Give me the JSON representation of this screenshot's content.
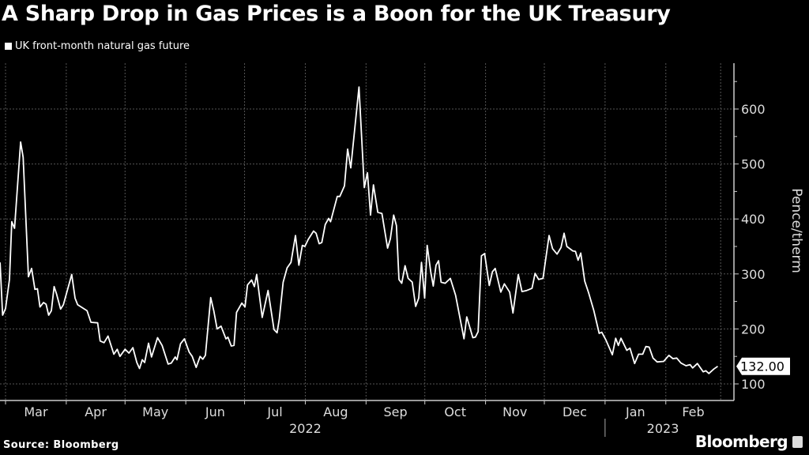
{
  "title": "A Sharp Drop in Gas Prices is a Boon for the UK Treasury",
  "legend": "UK front-month natural gas future",
  "source": "Source: Bloomberg",
  "brand": "Bloomberg",
  "colors": {
    "background": "#000000",
    "line": "#ffffff",
    "grid": "#555555"
  },
  "chart_data": {
    "type": "line",
    "title": "A Sharp Drop in Gas Prices is a Boon for the UK Treasury",
    "xlabel": "",
    "ylabel": "Pence/therm",
    "x_unit": "days since 2022-03-01",
    "ylim": [
      70,
      680
    ],
    "yticks": [
      100,
      200,
      300,
      400,
      500,
      600
    ],
    "grid": true,
    "legend_position": "top-left",
    "month_labels": [
      {
        "label": "Mar",
        "start": 0,
        "end": 31
      },
      {
        "label": "Apr",
        "start": 31,
        "end": 61
      },
      {
        "label": "May",
        "start": 61,
        "end": 92
      },
      {
        "label": "Jun",
        "start": 92,
        "end": 122
      },
      {
        "label": "Jul",
        "start": 122,
        "end": 153
      },
      {
        "label": "Aug",
        "start": 153,
        "end": 184
      },
      {
        "label": "Sep",
        "start": 184,
        "end": 214
      },
      {
        "label": "Oct",
        "start": 214,
        "end": 245
      },
      {
        "label": "Nov",
        "start": 245,
        "end": 275
      },
      {
        "label": "Dec",
        "start": 275,
        "end": 306
      },
      {
        "label": "Jan",
        "start": 306,
        "end": 337
      },
      {
        "label": "Feb",
        "start": 337,
        "end": 365
      }
    ],
    "year_labels": [
      {
        "label": "2022",
        "start": 0,
        "end": 306
      },
      {
        "label": "2023",
        "start": 306,
        "end": 365
      }
    ],
    "last_value_label": "132.00",
    "last_value": 132,
    "series": [
      {
        "name": "UK front-month natural gas future",
        "points": [
          [
            -2.8,
            321
          ],
          [
            -1.5,
            225
          ],
          [
            0,
            237
          ],
          [
            2,
            290
          ],
          [
            3.2,
            395
          ],
          [
            4.6,
            383
          ],
          [
            7.7,
            540
          ],
          [
            9,
            512
          ],
          [
            11.7,
            295
          ],
          [
            13.3,
            310
          ],
          [
            15,
            272
          ],
          [
            16.3,
            273
          ],
          [
            17.6,
            240
          ],
          [
            19.4,
            248
          ],
          [
            20.7,
            245
          ],
          [
            22,
            225
          ],
          [
            23.4,
            233
          ],
          [
            24.8,
            277
          ],
          [
            26,
            264
          ],
          [
            28.1,
            236
          ],
          [
            29.5,
            244
          ],
          [
            33.8,
            299
          ],
          [
            35.5,
            256
          ],
          [
            36.8,
            244
          ],
          [
            41.6,
            233
          ],
          [
            43.6,
            212
          ],
          [
            47,
            211
          ],
          [
            48.3,
            178
          ],
          [
            50.3,
            175
          ],
          [
            52.3,
            187
          ],
          [
            55.3,
            154
          ],
          [
            57,
            163
          ],
          [
            58.4,
            150
          ],
          [
            61,
            163
          ],
          [
            63,
            156
          ],
          [
            65,
            166
          ],
          [
            67,
            139
          ],
          [
            68.4,
            128
          ],
          [
            69.8,
            144
          ],
          [
            71,
            139
          ],
          [
            73,
            174
          ],
          [
            74.5,
            149
          ],
          [
            77.6,
            184
          ],
          [
            79.9,
            170
          ],
          [
            83,
            136
          ],
          [
            84.6,
            138
          ],
          [
            86.6,
            149
          ],
          [
            87.5,
            144
          ],
          [
            89.3,
            173
          ],
          [
            91.3,
            182
          ],
          [
            93.7,
            158
          ],
          [
            95.3,
            150
          ],
          [
            97.3,
            130
          ],
          [
            99.3,
            150
          ],
          [
            100.7,
            145
          ],
          [
            102,
            152
          ],
          [
            104.7,
            257
          ],
          [
            106.3,
            233
          ],
          [
            108,
            200
          ],
          [
            110,
            205
          ],
          [
            112.5,
            182
          ],
          [
            113.5,
            185
          ],
          [
            115.2,
            169
          ],
          [
            116.6,
            170
          ],
          [
            117.9,
            230
          ],
          [
            120.6,
            247
          ],
          [
            122.2,
            240
          ],
          [
            123.5,
            280
          ],
          [
            125.6,
            289
          ],
          [
            127,
            277
          ],
          [
            128.2,
            299
          ],
          [
            131,
            221
          ],
          [
            134,
            270
          ],
          [
            137,
            199
          ],
          [
            138.6,
            193
          ],
          [
            139.7,
            218
          ],
          [
            141.7,
            285
          ],
          [
            143.7,
            311
          ],
          [
            145.7,
            321
          ],
          [
            148,
            370
          ],
          [
            149.7,
            316
          ],
          [
            151.5,
            352
          ],
          [
            152.8,
            350
          ],
          [
            154.5,
            363
          ],
          [
            157.2,
            378
          ],
          [
            158.5,
            374
          ],
          [
            160.1,
            355
          ],
          [
            161.4,
            357
          ],
          [
            163.2,
            390
          ],
          [
            164.9,
            401
          ],
          [
            165.9,
            395
          ],
          [
            169.3,
            441
          ],
          [
            170.6,
            441
          ],
          [
            173,
            460
          ],
          [
            174.6,
            527
          ],
          [
            176.2,
            493
          ],
          [
            180.4,
            640
          ],
          [
            183.1,
            457
          ],
          [
            184.7,
            484
          ],
          [
            186.3,
            407
          ],
          [
            187.8,
            462
          ],
          [
            190,
            412
          ],
          [
            192.1,
            410
          ],
          [
            195,
            347
          ],
          [
            196.4,
            364
          ],
          [
            198.1,
            407
          ],
          [
            199.5,
            388
          ],
          [
            200.8,
            290
          ],
          [
            202.2,
            283
          ],
          [
            203.9,
            315
          ],
          [
            205.5,
            292
          ],
          [
            207.6,
            285
          ],
          [
            209.3,
            241
          ],
          [
            210.9,
            256
          ],
          [
            212.3,
            321
          ],
          [
            213.9,
            256
          ],
          [
            215.2,
            352
          ],
          [
            217,
            304
          ],
          [
            218.3,
            278
          ],
          [
            219.7,
            316
          ],
          [
            221,
            324
          ],
          [
            222.3,
            285
          ],
          [
            224.4,
            283
          ],
          [
            227,
            292
          ],
          [
            229.7,
            261
          ],
          [
            234,
            182
          ],
          [
            235.4,
            222
          ],
          [
            238.5,
            184
          ],
          [
            239.8,
            185
          ],
          [
            241.2,
            195
          ],
          [
            242.9,
            333
          ],
          [
            244.5,
            337
          ],
          [
            246.9,
            279
          ],
          [
            248.5,
            304
          ],
          [
            249.9,
            310
          ],
          [
            252.8,
            267
          ],
          [
            254.6,
            282
          ],
          [
            257.3,
            267
          ],
          [
            259,
            229
          ],
          [
            261.7,
            299
          ],
          [
            263.6,
            268
          ],
          [
            266,
            270
          ],
          [
            267.4,
            272
          ],
          [
            268.7,
            274
          ],
          [
            270.3,
            301
          ],
          [
            272.1,
            290
          ],
          [
            274.3,
            292
          ],
          [
            277.4,
            370
          ],
          [
            279.2,
            346
          ],
          [
            281.5,
            336
          ],
          [
            283.5,
            348
          ],
          [
            285.1,
            374
          ],
          [
            286.5,
            350
          ],
          [
            289.5,
            342
          ],
          [
            290.9,
            341
          ],
          [
            292.2,
            325
          ],
          [
            293.6,
            338
          ],
          [
            295.6,
            287
          ],
          [
            297.6,
            266
          ],
          [
            300.3,
            233
          ],
          [
            303,
            192
          ],
          [
            304.3,
            194
          ],
          [
            306.4,
            180
          ],
          [
            309.7,
            153
          ],
          [
            311.4,
            183
          ],
          [
            312.8,
            170
          ],
          [
            314.1,
            183
          ],
          [
            317.1,
            161
          ],
          [
            318.7,
            165
          ],
          [
            321.1,
            137
          ],
          [
            323.1,
            154
          ],
          [
            325.2,
            154
          ],
          [
            326.8,
            168
          ],
          [
            328.5,
            167
          ],
          [
            330.5,
            147
          ],
          [
            332.6,
            140
          ],
          [
            335.9,
            141
          ],
          [
            338.6,
            152
          ],
          [
            340.6,
            146
          ],
          [
            342.6,
            147
          ],
          [
            344.7,
            138
          ],
          [
            347.3,
            133
          ],
          [
            349.4,
            135
          ],
          [
            350.7,
            129
          ],
          [
            353.1,
            137
          ],
          [
            356.1,
            122
          ],
          [
            357.4,
            124
          ],
          [
            359,
            119
          ],
          [
            361.5,
            127
          ],
          [
            363.5,
            132
          ]
        ]
      }
    ]
  }
}
